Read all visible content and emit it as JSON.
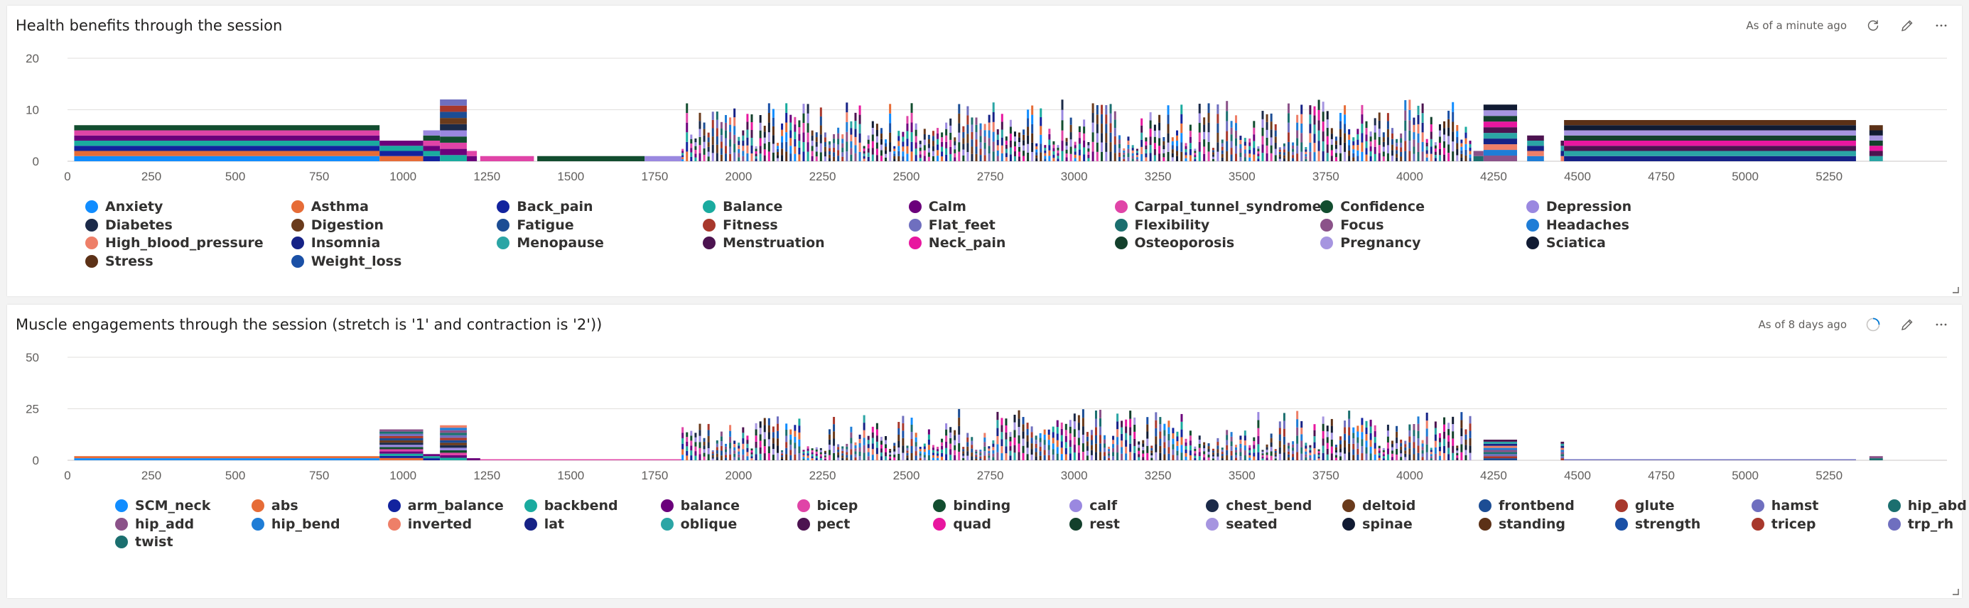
{
  "panels": [
    {
      "title": "Health benefits through the session",
      "as_of": "As of a minute ago",
      "refresh_state": "idle",
      "chart_data": {
        "type": "bar",
        "stacked": true,
        "title": "Health benefits through the session",
        "xlabel": "",
        "ylabel": "",
        "xlim": [
          0,
          5400
        ],
        "ylim": [
          0,
          20
        ],
        "y_ticks": [
          0,
          10,
          20
        ],
        "x_ticks": [
          0,
          250,
          500,
          750,
          1000,
          1250,
          1500,
          1750,
          2000,
          2250,
          2500,
          2750,
          3000,
          3250,
          3500,
          3750,
          4000,
          4250,
          4500,
          4750,
          5000,
          5250
        ],
        "grid": true,
        "legend_position": "bottom",
        "segments": [
          {
            "x0": 20,
            "x1": 930,
            "total": 7
          },
          {
            "x0": 930,
            "x1": 1060,
            "total": 4
          },
          {
            "x0": 1060,
            "x1": 1110,
            "total": 6
          },
          {
            "x0": 1110,
            "x1": 1190,
            "total": 12
          },
          {
            "x0": 1190,
            "x1": 1220,
            "total": 2
          },
          {
            "x0": 1230,
            "x1": 1390,
            "total": 1
          },
          {
            "x0": 1400,
            "x1": 1720,
            "total": 1
          },
          {
            "x0": 1720,
            "x1": 1830,
            "total": 1
          },
          {
            "x0": 1830,
            "x1": 2590,
            "total": 12,
            "dense": true
          },
          {
            "x0": 2590,
            "x1": 3000,
            "total": 12,
            "dense": true
          },
          {
            "x0": 3000,
            "x1": 3330,
            "total": 12,
            "dense": true
          },
          {
            "x0": 3330,
            "x1": 3520,
            "total": 12,
            "dense": true
          },
          {
            "x0": 3520,
            "x1": 4190,
            "total": 12,
            "dense": true
          },
          {
            "x0": 4190,
            "x1": 4220,
            "total": 2
          },
          {
            "x0": 4220,
            "x1": 4320,
            "total": 11
          },
          {
            "x0": 4350,
            "x1": 4400,
            "total": 5
          },
          {
            "x0": 4450,
            "x1": 4460,
            "total": 4
          },
          {
            "x0": 4460,
            "x1": 5330,
            "total": 8
          },
          {
            "x0": 5370,
            "x1": 5410,
            "total": 7
          }
        ],
        "series": [
          {
            "name": "Anxiety",
            "color": "#118dff"
          },
          {
            "name": "Asthma",
            "color": "#e66c37"
          },
          {
            "name": "Back_pain",
            "color": "#12239e"
          },
          {
            "name": "Balance",
            "color": "#1aab9f"
          },
          {
            "name": "Calm",
            "color": "#6b007b"
          },
          {
            "name": "Carpal_tunnel_syndrome",
            "color": "#e044a7"
          },
          {
            "name": "Confidence",
            "color": "#124d2f"
          },
          {
            "name": "Depression",
            "color": "#9a88e0"
          },
          {
            "name": "Diabetes",
            "color": "#1b2a49"
          },
          {
            "name": "Digestion",
            "color": "#6a3b1c"
          },
          {
            "name": "Fatigue",
            "color": "#1c4d94"
          },
          {
            "name": "Fitness",
            "color": "#a8382c"
          },
          {
            "name": "Flat_feet",
            "color": "#6f6fbf"
          },
          {
            "name": "Flexibility",
            "color": "#1b6f6f"
          },
          {
            "name": "Focus",
            "color": "#8b5289"
          },
          {
            "name": "Headaches",
            "color": "#1f7dd6"
          },
          {
            "name": "High_blood_pressure",
            "color": "#ee7f68"
          },
          {
            "name": "Insomnia",
            "color": "#162286"
          },
          {
            "name": "Menopause",
            "color": "#2ba5a5"
          },
          {
            "name": "Menstruation",
            "color": "#4c1350"
          },
          {
            "name": "Neck_pain",
            "color": "#e8179f"
          },
          {
            "name": "Osteoporosis",
            "color": "#13402c"
          },
          {
            "name": "Pregnancy",
            "color": "#a695e0"
          },
          {
            "name": "Sciatica",
            "color": "#111b33"
          },
          {
            "name": "Stress",
            "color": "#5c3117"
          },
          {
            "name": "Weight_loss",
            "color": "#1a50a6"
          }
        ]
      }
    },
    {
      "title": "Muscle engagements through the session (stretch is '1' and contraction is '2'))",
      "as_of": "As of 8 days ago",
      "refresh_state": "loading",
      "chart_data": {
        "type": "bar",
        "stacked": true,
        "title": "Muscle engagements through the session (stretch is '1' and contraction is '2'))",
        "xlabel": "",
        "ylabel": "",
        "xlim": [
          0,
          5400
        ],
        "ylim": [
          0,
          50
        ],
        "y_ticks": [
          0,
          25,
          50
        ],
        "x_ticks": [
          0,
          250,
          500,
          750,
          1000,
          1250,
          1500,
          1750,
          2000,
          2250,
          2500,
          2750,
          3000,
          3250,
          3500,
          3750,
          4000,
          4250,
          4500,
          4750,
          5000,
          5250
        ],
        "grid": true,
        "legend_position": "bottom",
        "segments": [
          {
            "x0": 20,
            "x1": 930,
            "total": 2
          },
          {
            "x0": 930,
            "x1": 1060,
            "total": 15
          },
          {
            "x0": 1060,
            "x1": 1110,
            "total": 3
          },
          {
            "x0": 1110,
            "x1": 1190,
            "total": 17
          },
          {
            "x0": 1190,
            "x1": 1230,
            "total": 1
          },
          {
            "x0": 1230,
            "x1": 1830,
            "total": 0.5
          },
          {
            "x0": 1830,
            "x1": 2590,
            "total": 22,
            "dense": true
          },
          {
            "x0": 2590,
            "x1": 3330,
            "total": 25,
            "dense": true
          },
          {
            "x0": 3330,
            "x1": 3520,
            "total": 16,
            "dense": true
          },
          {
            "x0": 3520,
            "x1": 4190,
            "total": 25,
            "dense": true
          },
          {
            "x0": 4220,
            "x1": 4320,
            "total": 10
          },
          {
            "x0": 4450,
            "x1": 4460,
            "total": 9
          },
          {
            "x0": 4460,
            "x1": 5330,
            "total": 0.5
          },
          {
            "x0": 5370,
            "x1": 5410,
            "total": 2
          }
        ],
        "series": [
          {
            "name": "SCM_neck",
            "color": "#118dff"
          },
          {
            "name": "abs",
            "color": "#e66c37"
          },
          {
            "name": "arm_balance",
            "color": "#12239e"
          },
          {
            "name": "backbend",
            "color": "#1aab9f"
          },
          {
            "name": "balance",
            "color": "#6b007b"
          },
          {
            "name": "bicep",
            "color": "#e044a7"
          },
          {
            "name": "binding",
            "color": "#124d2f"
          },
          {
            "name": "calf",
            "color": "#9a88e0"
          },
          {
            "name": "chest_bend",
            "color": "#1b2a49"
          },
          {
            "name": "deltoid",
            "color": "#6a3b1c"
          },
          {
            "name": "frontbend",
            "color": "#1c4d94"
          },
          {
            "name": "glute",
            "color": "#a8382c"
          },
          {
            "name": "hamst",
            "color": "#6f6fbf"
          },
          {
            "name": "hip_abd",
            "color": "#1b6f6f"
          },
          {
            "name": "hip_add",
            "color": "#8b5289"
          },
          {
            "name": "hip_bend",
            "color": "#1f7dd6"
          },
          {
            "name": "inverted",
            "color": "#ee7f68"
          },
          {
            "name": "lat",
            "color": "#162286"
          },
          {
            "name": "oblique",
            "color": "#2ba5a5"
          },
          {
            "name": "pect",
            "color": "#4c1350"
          },
          {
            "name": "quad",
            "color": "#e8179f"
          },
          {
            "name": "rest",
            "color": "#13402c"
          },
          {
            "name": "seated",
            "color": "#a695e0"
          },
          {
            "name": "spinae",
            "color": "#111b33"
          },
          {
            "name": "standing",
            "color": "#5c3117"
          },
          {
            "name": "strength",
            "color": "#1a50a6"
          },
          {
            "name": "tricep",
            "color": "#a8382c"
          },
          {
            "name": "trp_rh",
            "color": "#6f6fbf"
          },
          {
            "name": "twist",
            "color": "#1b6f6f"
          }
        ]
      }
    }
  ]
}
